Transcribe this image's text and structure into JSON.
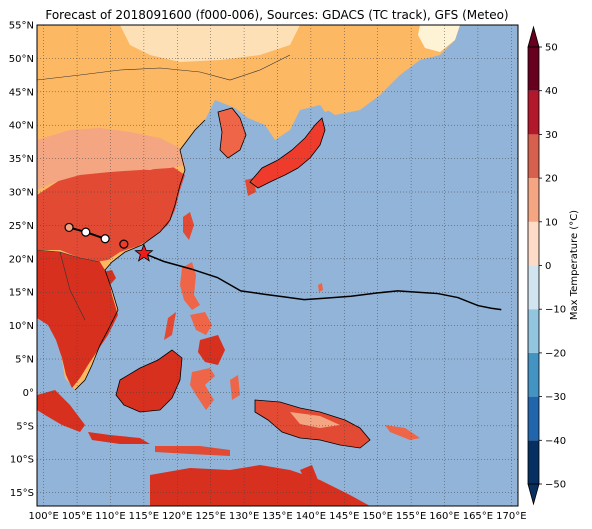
{
  "title": "Forecast of 2018091600 (f000-006), Sources: GDACS (TC track), GFS (Meteo)",
  "map": {
    "lon_range": [
      99,
      171
    ],
    "lat_range": [
      -17,
      55
    ],
    "lat_ticks": [
      "55°N",
      "50°N",
      "45°N",
      "40°N",
      "35°N",
      "30°N",
      "25°N",
      "20°N",
      "15°N",
      "10°N",
      "5°N",
      "0°",
      "5°S",
      "10°S",
      "15°S"
    ],
    "lat_values": [
      55,
      50,
      45,
      40,
      35,
      30,
      25,
      20,
      15,
      10,
      5,
      0,
      -5,
      -10,
      -15
    ],
    "lon_ticks": [
      "100°E",
      "105°E",
      "110°E",
      "115°E",
      "120°E",
      "125°E",
      "130°E",
      "135°E",
      "140°E",
      "145°E",
      "150°E",
      "155°E",
      "160°E",
      "165°E",
      "170°E"
    ],
    "lon_values": [
      100,
      105,
      110,
      115,
      120,
      125,
      130,
      135,
      140,
      145,
      150,
      155,
      160,
      165,
      170
    ],
    "ocean_color": "#91b4d8",
    "grid": "dotted"
  },
  "storm": {
    "current_position": {
      "lon": 115.0,
      "lat": 20.8,
      "marker": "red-star"
    },
    "forecast_track": [
      {
        "lon": 115.0,
        "lat": 20.8
      },
      {
        "lon": 118.0,
        "lat": 19.6
      },
      {
        "lon": 122.0,
        "lat": 18.5
      },
      {
        "lon": 126.0,
        "lat": 17.2
      },
      {
        "lon": 129.5,
        "lat": 15.2
      },
      {
        "lon": 133.0,
        "lat": 14.7
      },
      {
        "lon": 136.0,
        "lat": 14.3
      },
      {
        "lon": 139.0,
        "lat": 13.9
      },
      {
        "lon": 142.0,
        "lat": 14.1
      },
      {
        "lon": 146.0,
        "lat": 14.4
      },
      {
        "lon": 150.0,
        "lat": 14.9
      },
      {
        "lon": 153.0,
        "lat": 15.2
      },
      {
        "lon": 156.0,
        "lat": 15.0
      },
      {
        "lon": 159.0,
        "lat": 14.8
      },
      {
        "lon": 162.0,
        "lat": 14.2
      },
      {
        "lon": 165.0,
        "lat": 13.0
      },
      {
        "lon": 167.0,
        "lat": 12.6
      },
      {
        "lon": 168.5,
        "lat": 12.4
      }
    ],
    "past_positions": [
      {
        "lon": 109.2,
        "lat": 23.0,
        "fill": "#ffffff"
      },
      {
        "lon": 106.3,
        "lat": 24.0,
        "fill": "#ffffff"
      },
      {
        "lon": 103.8,
        "lat": 24.7,
        "fill": "#f4a582"
      },
      {
        "lon": 112.0,
        "lat": 22.2,
        "fill": "#ef3b2c"
      }
    ]
  },
  "colorbar": {
    "label": "Max Temperature (°C)",
    "min": -50,
    "max": 50,
    "step": 10,
    "tick_labels": [
      "50",
      "40",
      "30",
      "20",
      "10",
      "0",
      "−10",
      "−20",
      "−30",
      "−40",
      "−50"
    ],
    "colors": [
      "#053061",
      "#2166ac",
      "#4393c3",
      "#92c5de",
      "#d1e5f0",
      "#fddbc7",
      "#f4a582",
      "#d6604d",
      "#b2182b",
      "#67001f"
    ],
    "over_color": "#67001f",
    "under_color": "#053061"
  }
}
